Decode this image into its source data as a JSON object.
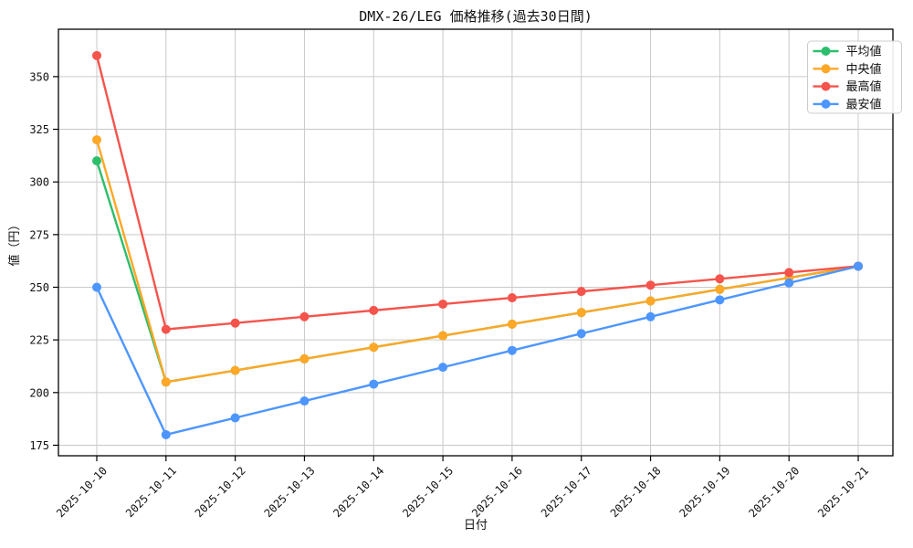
{
  "chart_data": {
    "type": "line",
    "title": "DMX-26/LEG 価格推移(過去30日間)",
    "xlabel": "日付",
    "ylabel": "値（円）",
    "x": [
      "2025-10-10",
      "2025-10-11",
      "2025-10-12",
      "2025-10-13",
      "2025-10-14",
      "2025-10-15",
      "2025-10-16",
      "2025-10-17",
      "2025-10-18",
      "2025-10-19",
      "2025-10-20",
      "2025-10-21"
    ],
    "ylim": [
      170,
      372.5
    ],
    "yticks": [
      175,
      200,
      225,
      250,
      275,
      300,
      325,
      350
    ],
    "grid": true,
    "grid_color": "#c9c9c9",
    "spine_color": "#000000",
    "background_color": "#ffffff",
    "legend_position": "top-right",
    "x_tick_rotation_deg": 45,
    "series": [
      {
        "name": "平均値",
        "color": "#2dbe6c",
        "values": [
          310,
          205,
          210.5,
          216,
          221.5,
          227,
          232.5,
          238,
          243.5,
          249,
          254.5,
          260
        ]
      },
      {
        "name": "中央値",
        "color": "#ffa726",
        "values": [
          320,
          205,
          210.5,
          216,
          221.5,
          227,
          232.5,
          238,
          243.5,
          249,
          254.5,
          260
        ]
      },
      {
        "name": "最高値",
        "color": "#f4544c",
        "values": [
          360,
          230,
          233,
          236,
          239,
          242,
          245,
          248,
          251,
          254,
          257,
          260
        ]
      },
      {
        "name": "最安値",
        "color": "#4d96ff",
        "values": [
          250,
          180,
          188,
          196,
          204,
          212,
          220,
          228,
          236,
          244,
          252,
          260
        ]
      }
    ]
  }
}
